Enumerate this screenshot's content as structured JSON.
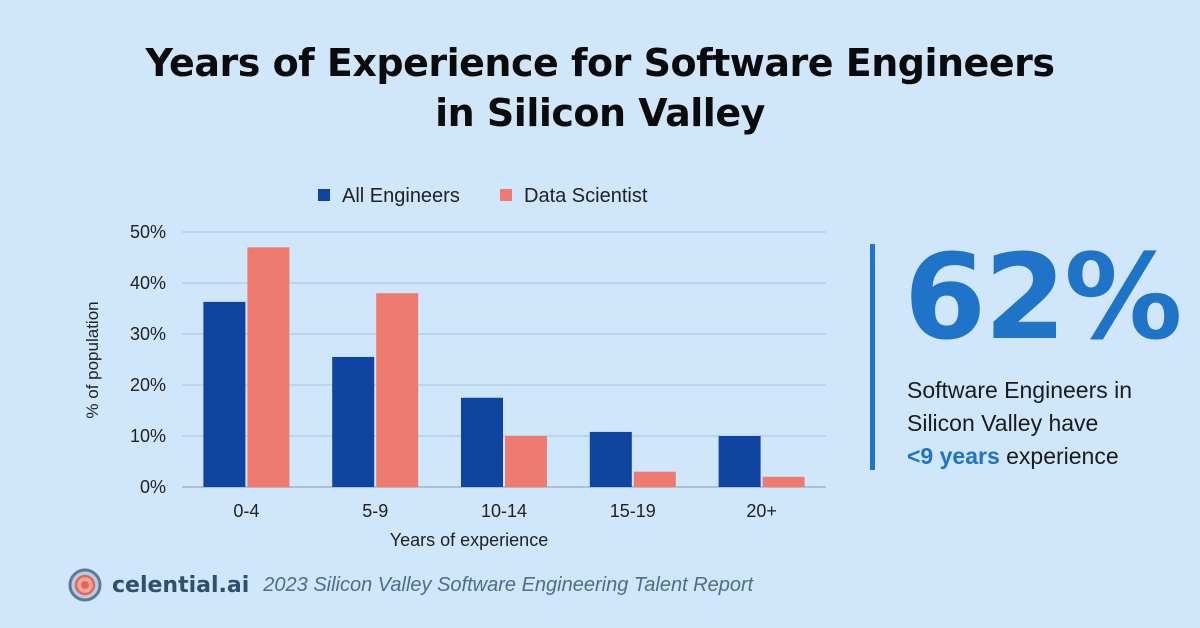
{
  "title": {
    "line1": "Years of Experience for Software Engineers",
    "line2": "in Silicon Valley"
  },
  "chart_data": {
    "type": "bar",
    "title": "Years of Experience for Software Engineers in Silicon Valley",
    "xlabel": "Years of experience",
    "ylabel": "% of population",
    "categories": [
      "0-4",
      "5-9",
      "10-14",
      "15-19",
      "20+"
    ],
    "series": [
      {
        "name": "All Engineers",
        "values": [
          36.3,
          25.5,
          17.5,
          10.8,
          10.0
        ],
        "color": "#0f44a0"
      },
      {
        "name": "Data Scientist",
        "values": [
          47.0,
          38.0,
          10.0,
          3.0,
          2.0
        ],
        "color": "#ef7b70"
      }
    ],
    "ylim": [
      0,
      50
    ],
    "yticks": [
      0,
      10,
      20,
      30,
      40,
      50
    ],
    "ytick_labels": [
      "0%",
      "10%",
      "20%",
      "30%",
      "40%",
      "50%"
    ],
    "grid": true,
    "legend": "top-center"
  },
  "stat": {
    "number": "62%",
    "line1": "Software Engineers in",
    "line2": "Silicon Valley have",
    "highlight": "<9 years",
    "tail": " experience"
  },
  "footer": {
    "brand": "celential.ai",
    "report": "2023 Silicon Valley Software Engineering Talent Report"
  },
  "colors": {
    "background": "#cfe6fb",
    "accent": "#1f74c7",
    "series1": "#0f44a0",
    "series2": "#ef7b70"
  }
}
